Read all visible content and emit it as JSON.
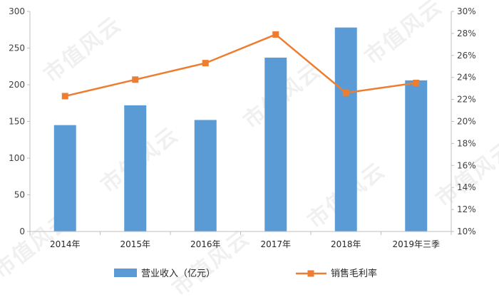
{
  "watermark": "市值风云",
  "chart_data": {
    "type": "bar+line",
    "categories": [
      "2014年",
      "2015年",
      "2016年",
      "2017年",
      "2018年",
      "2019年三季"
    ],
    "series": [
      {
        "name": "营业收入（亿元）",
        "type": "bar",
        "axis": "left",
        "color": "#5b9bd5",
        "values": [
          145,
          172,
          152,
          237,
          278,
          206
        ]
      },
      {
        "name": "销售毛利率",
        "type": "line",
        "axis": "right",
        "color": "#ed7d31",
        "values": [
          22.3,
          23.8,
          25.3,
          27.9,
          22.6,
          23.5
        ]
      }
    ],
    "yleft": {
      "min": 0,
      "max": 300,
      "step": 50,
      "ticks": [
        "0",
        "50",
        "100",
        "150",
        "200",
        "250",
        "300"
      ]
    },
    "yright": {
      "min": 10,
      "max": 30,
      "step": 2,
      "ticks": [
        "10%",
        "12%",
        "14%",
        "16%",
        "18%",
        "20%",
        "22%",
        "24%",
        "26%",
        "28%",
        "30%"
      ]
    },
    "grid": false,
    "legend_position": "bottom"
  }
}
